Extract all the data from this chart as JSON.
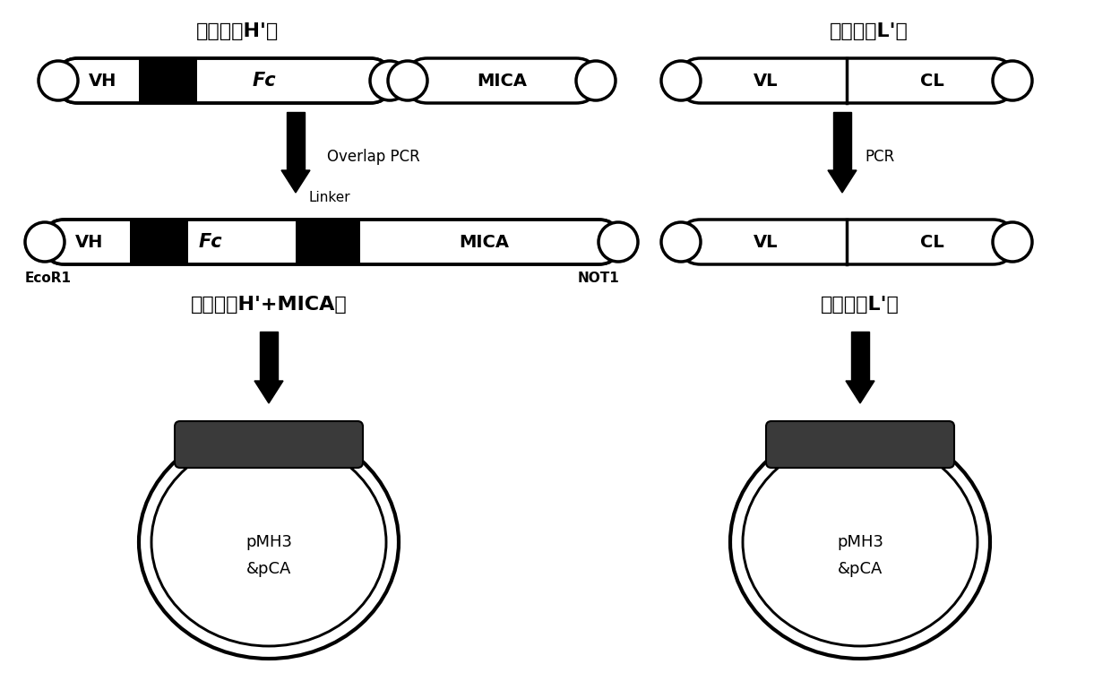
{
  "bg_color": "#ffffff",
  "title_left": "全长抗体H'链",
  "title_right": "全长抗体L'链",
  "label_overlap_pcr": "Overlap PCR",
  "label_pcr": "PCR",
  "label_linker": "Linker",
  "label_ecor1": "EcoR1",
  "label_not1": "NOT1",
  "label_fusion_h": "融合蛋白H'+MICA链",
  "label_fusion_l": "融合蛋白L'链",
  "label_pmh3_1": "pMH3\n&pCA",
  "label_pmh3_2": "pMH3\n&pCA",
  "black": "#000000",
  "white": "#ffffff",
  "insert_color": "#3a3a3a"
}
